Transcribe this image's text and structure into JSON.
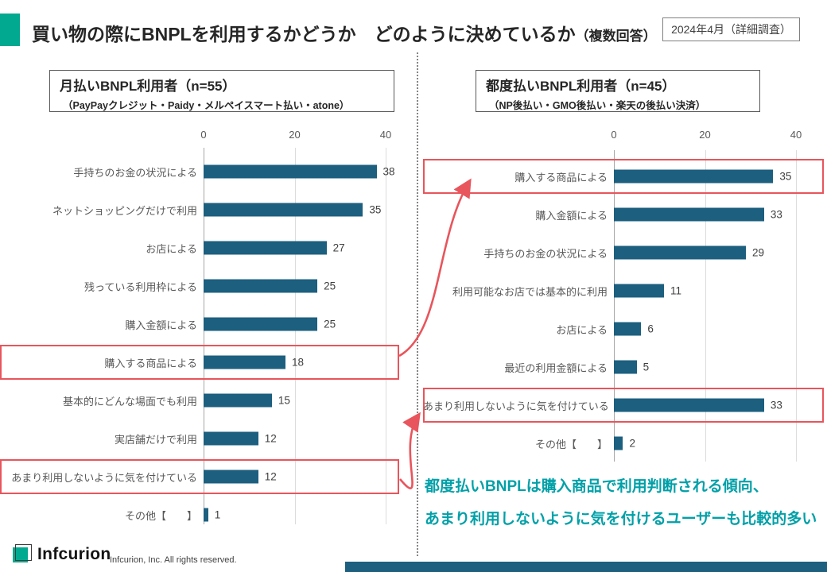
{
  "header": {
    "title_main": "買い物の際にBNPLを利用するかどうか　どのように決めているか",
    "title_suffix": "（複数回答）",
    "badge": "2024年4月（詳細調査）"
  },
  "chart_data": [
    {
      "type": "bar",
      "orientation": "horizontal",
      "title": "月払いBNPL利用者（n=55）",
      "subtitle": "（PayPayクレジット・Paidy・メルペイスマート払い・atone）",
      "categories": [
        "手持ちのお金の状況による",
        "ネットショッピングだけで利用",
        "お店による",
        "残っている利用枠による",
        "購入金額による",
        "購入する商品による",
        "基本的にどんな場面でも利用",
        "実店舗だけで利用",
        "あまり利用しないように気を付けている",
        "その他【　　】"
      ],
      "values": [
        38,
        35,
        27,
        25,
        25,
        18,
        15,
        12,
        12,
        1
      ],
      "xlim": [
        0,
        40
      ],
      "ticks": [
        0,
        20,
        40
      ],
      "highlighted_indices": [
        5,
        8
      ],
      "grid": true,
      "legend": false,
      "xlabel": "",
      "ylabel": ""
    },
    {
      "type": "bar",
      "orientation": "horizontal",
      "title": "都度払いBNPL利用者（n=45）",
      "subtitle": "（NP後払い・GMO後払い・楽天の後払い決済）",
      "categories": [
        "購入する商品による",
        "購入金額による",
        "手持ちのお金の状況による",
        "利用可能なお店では基本的に利用",
        "お店による",
        "最近の利用金額による",
        "あまり利用しないように気を付けている",
        "その他【　　】"
      ],
      "values": [
        35,
        33,
        29,
        11,
        6,
        5,
        33,
        2
      ],
      "xlim": [
        0,
        40
      ],
      "ticks": [
        0,
        20,
        40
      ],
      "highlighted_indices": [
        0,
        6
      ],
      "grid": true,
      "legend": false,
      "xlabel": "",
      "ylabel": ""
    }
  ],
  "annotation": {
    "line1": "都度払いBNPLは購入商品で利用判断される傾向、",
    "line2": "あまり利用しないように気を付けるユーザーも比較的多い"
  },
  "footer": {
    "logo_text": "Infcurion",
    "copyright": "Infcurion, Inc.  All rights reserved."
  },
  "colors": {
    "bar_blue": "#1c5f7f",
    "accent_teal": "#00a98f",
    "highlight_red": "#e8555c",
    "annotation_teal": "#00a0a8"
  }
}
